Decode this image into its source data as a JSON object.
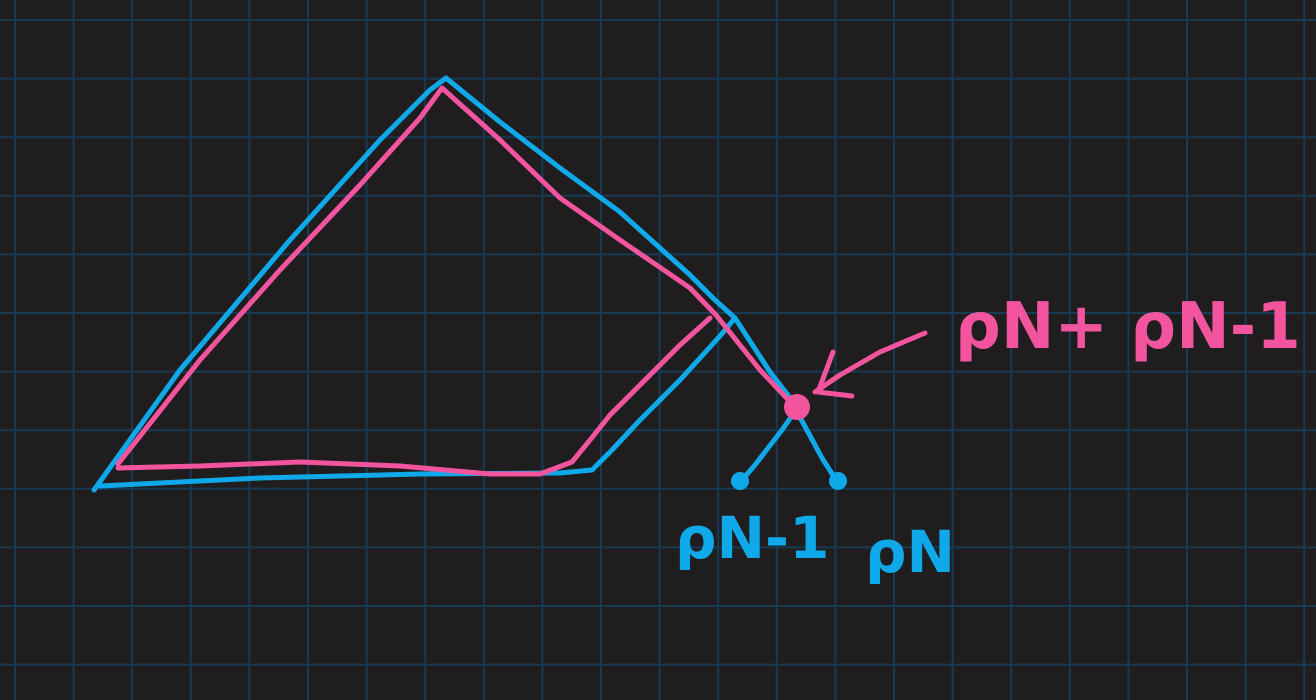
{
  "colors": {
    "background": "#1f1d1e",
    "grid": "#173b55",
    "blue": "#0fa8e8",
    "pink": "#f2559e"
  },
  "labels": {
    "sum": "ρN+ ρN-1",
    "parent_left": "ρN-1",
    "parent_right": "ρN"
  }
}
